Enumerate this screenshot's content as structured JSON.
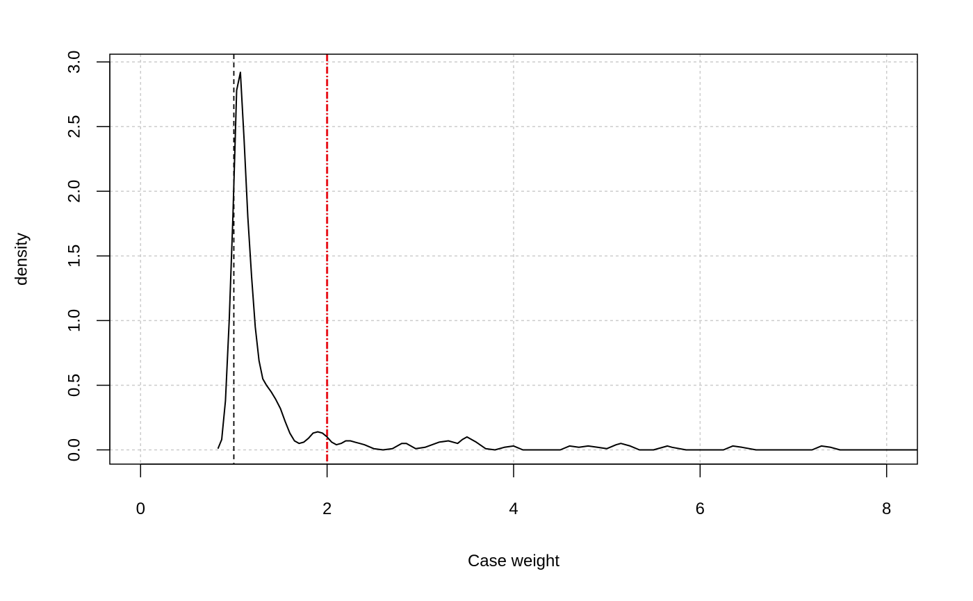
{
  "chart_data": {
    "type": "line",
    "title": "",
    "xlabel": "Case weight",
    "ylabel": "density",
    "xlim": [
      -0.33,
      8.33
    ],
    "ylim": [
      -0.11,
      3.06
    ],
    "x_ticks": [
      0,
      2,
      4,
      6,
      8
    ],
    "y_ticks": [
      0.0,
      0.5,
      1.0,
      1.5,
      2.0,
      2.5,
      3.0
    ],
    "x_tick_labels": [
      "0",
      "2",
      "4",
      "6",
      "8"
    ],
    "y_tick_labels": [
      "0.0",
      "0.5",
      "1.0",
      "1.5",
      "2.0",
      "2.5",
      "3.0"
    ],
    "grid": true,
    "series": [
      {
        "color": "#000000",
        "style": "solid",
        "x": [
          0.83,
          0.87,
          0.91,
          0.95,
          0.99,
          1.03,
          1.07,
          1.11,
          1.15,
          1.19,
          1.23,
          1.27,
          1.31,
          1.35,
          1.4,
          1.45,
          1.5,
          1.55,
          1.6,
          1.65,
          1.7,
          1.75,
          1.8,
          1.85,
          1.9,
          1.95,
          2.0,
          2.05,
          2.1,
          2.15,
          2.2,
          2.25,
          2.3,
          2.35,
          2.4,
          2.5,
          2.6,
          2.7,
          2.8,
          2.85,
          2.95,
          3.05,
          3.2,
          3.3,
          3.4,
          3.45,
          3.5,
          3.6,
          3.7,
          3.8,
          3.9,
          4.0,
          4.1,
          4.3,
          4.5,
          4.6,
          4.7,
          4.8,
          4.9,
          5.0,
          5.1,
          5.15,
          5.25,
          5.35,
          5.5,
          5.65,
          5.7,
          5.85,
          6.0,
          6.25,
          6.35,
          6.45,
          6.6,
          7.0,
          7.2,
          7.3,
          7.4,
          7.5,
          8.0,
          8.33
        ],
        "y": [
          0.01,
          0.08,
          0.38,
          1.0,
          1.8,
          2.78,
          2.92,
          2.4,
          1.8,
          1.34,
          0.95,
          0.69,
          0.55,
          0.5,
          0.45,
          0.39,
          0.32,
          0.22,
          0.13,
          0.07,
          0.05,
          0.06,
          0.09,
          0.13,
          0.14,
          0.13,
          0.1,
          0.06,
          0.04,
          0.05,
          0.07,
          0.07,
          0.06,
          0.05,
          0.04,
          0.01,
          0.0,
          0.01,
          0.05,
          0.05,
          0.01,
          0.02,
          0.06,
          0.07,
          0.05,
          0.08,
          0.1,
          0.06,
          0.01,
          0.0,
          0.02,
          0.03,
          0.0,
          0.0,
          0.0,
          0.03,
          0.02,
          0.03,
          0.02,
          0.01,
          0.04,
          0.05,
          0.03,
          0.0,
          0.0,
          0.03,
          0.02,
          0.0,
          0.0,
          0.0,
          0.03,
          0.02,
          0.0,
          0.0,
          0.0,
          0.03,
          0.02,
          0.0,
          0.0,
          0.0
        ]
      }
    ],
    "reference_lines": [
      {
        "axis": "x",
        "value": 1,
        "color": "#000000",
        "style": "dashed"
      },
      {
        "axis": "x",
        "value": 2,
        "color": "#e8141c",
        "style": "dash-dot"
      }
    ]
  }
}
